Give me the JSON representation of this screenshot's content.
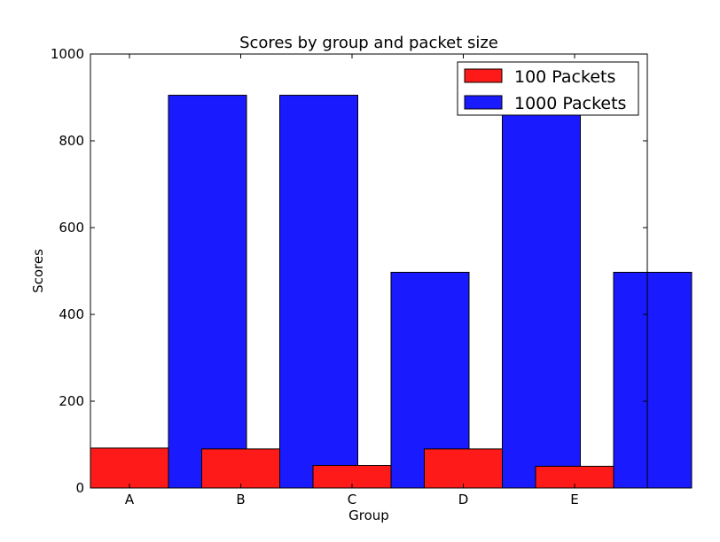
{
  "chart_data": {
    "type": "bar",
    "title": "Scores by group and packet size",
    "xlabel": "Group",
    "ylabel": "Scores",
    "categories": [
      "A",
      "B",
      "C",
      "D",
      "E"
    ],
    "series": [
      {
        "name": "100 Packets",
        "color": "#ff1a1a",
        "values": [
          92,
          90,
          52,
          90,
          50
        ]
      },
      {
        "name": "1000 Packets",
        "color": "#1a1aff",
        "values": [
          905,
          905,
          497,
          905,
          497
        ]
      }
    ],
    "ylim": [
      0,
      1000
    ],
    "yticks": [
      "0",
      "200",
      "400",
      "600",
      "800",
      "1000"
    ],
    "grid": false,
    "legend_position": "top-right"
  }
}
